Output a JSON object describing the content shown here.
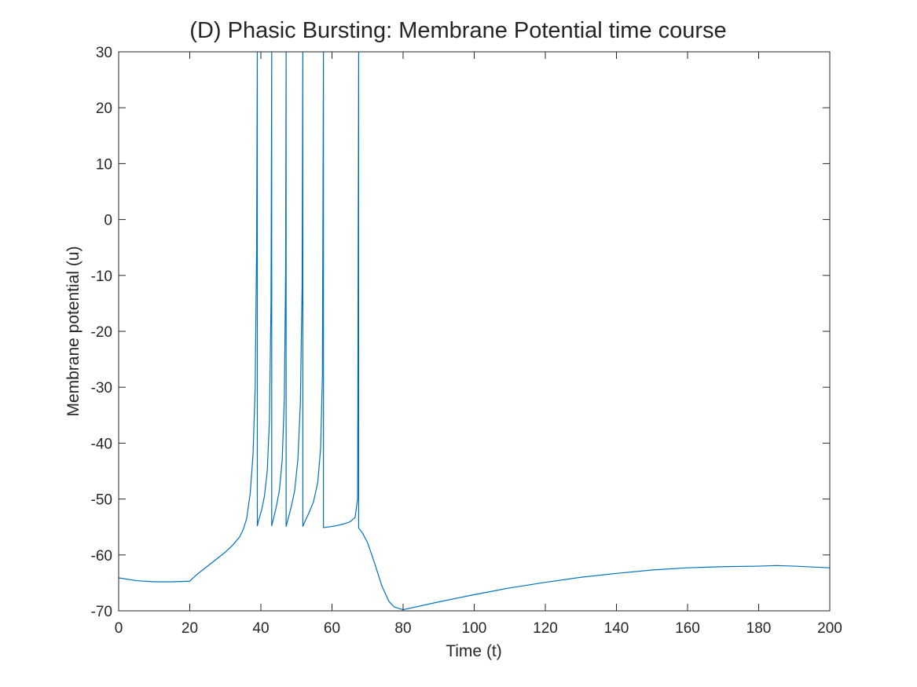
{
  "chart_data": {
    "type": "line",
    "title": "(D) Phasic Bursting: Membrane Potential time course",
    "xlabel": "Time (t)",
    "ylabel": "Membrane potential (u)",
    "xlim": [
      0,
      200
    ],
    "ylim": [
      -70,
      30
    ],
    "xticks": [
      0,
      20,
      40,
      60,
      80,
      100,
      120,
      140,
      160,
      180,
      200
    ],
    "yticks": [
      -70,
      -60,
      -50,
      -40,
      -30,
      -20,
      -10,
      0,
      10,
      20,
      30
    ],
    "grid": false,
    "box": true,
    "line_color": "#0072BD",
    "series": [
      {
        "x": [
          0,
          5,
          10,
          15,
          20,
          20.3,
          22,
          24,
          26,
          28,
          30,
          32,
          34,
          35,
          36,
          37,
          37.8,
          38.4,
          38.8,
          39.0,
          39.0,
          39.5,
          40.2,
          41.0,
          41.8,
          42.4,
          42.85,
          43.05,
          43.05,
          43.55,
          44.3,
          45.2,
          46.0,
          46.6,
          46.95,
          47.1,
          47.1,
          47.6,
          48.5,
          49.5,
          50.4,
          51.1,
          51.6,
          51.8,
          51.8,
          52.4,
          53.5,
          54.8,
          56.0,
          56.8,
          57.3,
          57.6,
          57.6,
          59,
          61,
          63,
          65,
          66.5,
          67.2,
          67.5,
          67.5,
          68.5,
          70,
          72,
          74,
          76,
          77.5,
          79,
          80,
          90,
          100,
          110,
          120,
          130,
          140,
          150,
          160,
          170,
          180,
          185,
          190,
          200
        ],
        "y": [
          -64.1,
          -64.6,
          -64.8,
          -64.8,
          -64.7,
          -64.5,
          -63.5,
          -62.5,
          -61.5,
          -60.5,
          -59.5,
          -58.3,
          -56.8,
          -55.5,
          -53.5,
          -49,
          -42,
          -30,
          -5,
          30,
          -54.8,
          -53.5,
          -52,
          -49.5,
          -45,
          -36,
          -15,
          30,
          -54.8,
          -53.5,
          -51.5,
          -48.5,
          -43,
          -32,
          -10,
          30,
          -54.9,
          -53.7,
          -51.5,
          -48.5,
          -43,
          -33,
          -12,
          30,
          -54.9,
          -54,
          -52.5,
          -50.5,
          -47,
          -41,
          -28,
          30,
          -55.1,
          -55,
          -54.8,
          -54.5,
          -54.1,
          -53.3,
          -50,
          30,
          -55.2,
          -56,
          -57.8,
          -61.5,
          -65.5,
          -68.3,
          -69.3,
          -69.6,
          -69.8,
          -68.4,
          -67.1,
          -65.9,
          -64.9,
          -64,
          -63.3,
          -62.7,
          -62.3,
          -62.1,
          -62.0,
          -61.9,
          -62.0,
          -62.3
        ]
      }
    ]
  }
}
